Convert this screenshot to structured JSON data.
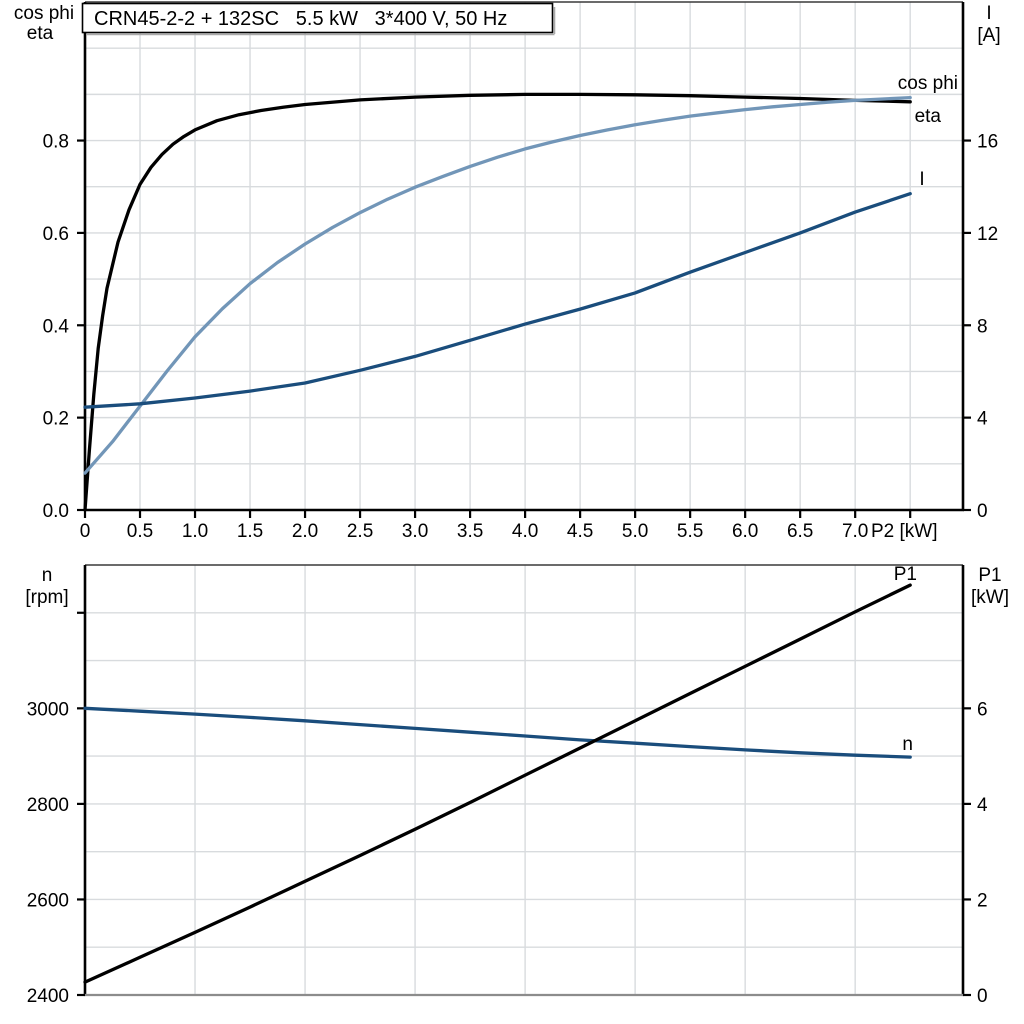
{
  "title_box": {
    "label": "CRN45-2-2 + 132SC   5.5 kW   3*400 V, 50 Hz"
  },
  "colors": {
    "eta": "#000000",
    "cos_phi": "#7296b8",
    "current": "#1a4d7c",
    "p1": "#000000",
    "n": "#1a4d7c",
    "grid": "#d8dbde",
    "axis": "#000000",
    "frame_top": "#3a3a3a",
    "frame_bottom": "#8c8c8c",
    "text": "#000000"
  },
  "chart_data": [
    {
      "type": "line",
      "title": "CRN45-2-2 + 132SC   5.5 kW   3*400 V, 50 Hz",
      "x_axis": {
        "label": "P2 [kW]",
        "range": [
          0,
          7.98
        ],
        "tick_step": 0.5,
        "grid_step": 0.5,
        "tick_labels": [
          "0",
          "0.5",
          "1.0",
          "1.5",
          "2.0",
          "2.5",
          "3.0",
          "3.5",
          "4.0",
          "4.5",
          "5.0",
          "5.5",
          "6.0",
          "6.5",
          "7.0"
        ],
        "extra_tick_values": [
          7.5
        ]
      },
      "left_axis": {
        "label_lines": [
          "cos phi",
          "eta"
        ],
        "range": [
          0,
          1.1
        ],
        "grid_step": 0.1,
        "tick_values": [
          0.0,
          0.2,
          0.4,
          0.6,
          0.8
        ],
        "tick_labels": [
          "0.0",
          "0.2",
          "0.4",
          "0.6",
          "0.8"
        ],
        "extra_tick_values": []
      },
      "right_axis": {
        "label_lines": [
          "I",
          "[A]"
        ],
        "range": [
          0,
          22
        ],
        "grid_step": 2,
        "tick_values": [
          0,
          4,
          8,
          12,
          16
        ],
        "tick_labels": [
          "0",
          "4",
          "8",
          "12",
          "16"
        ],
        "extra_tick_values": []
      },
      "series": [
        {
          "name": "eta",
          "label": "eta",
          "axis": "left",
          "color_key": "eta",
          "points": [
            [
              0,
              0
            ],
            [
              0.04,
              0.13
            ],
            [
              0.08,
              0.25
            ],
            [
              0.12,
              0.35
            ],
            [
              0.16,
              0.42
            ],
            [
              0.2,
              0.48
            ],
            [
              0.3,
              0.58
            ],
            [
              0.4,
              0.65
            ],
            [
              0.5,
              0.705
            ],
            [
              0.6,
              0.742
            ],
            [
              0.7,
              0.77
            ],
            [
              0.8,
              0.792
            ],
            [
              0.9,
              0.809
            ],
            [
              1.0,
              0.823
            ],
            [
              1.2,
              0.843
            ],
            [
              1.4,
              0.856
            ],
            [
              1.6,
              0.865
            ],
            [
              1.8,
              0.872
            ],
            [
              2.0,
              0.878
            ],
            [
              2.5,
              0.888
            ],
            [
              3.0,
              0.894
            ],
            [
              3.5,
              0.898
            ],
            [
              4.0,
              0.9
            ],
            [
              4.5,
              0.9
            ],
            [
              5.0,
              0.899
            ],
            [
              5.5,
              0.897
            ],
            [
              6.0,
              0.894
            ],
            [
              6.5,
              0.891
            ],
            [
              7.0,
              0.887
            ],
            [
              7.5,
              0.884
            ]
          ]
        },
        {
          "name": "cos phi",
          "label": "cos phi",
          "axis": "left",
          "color_key": "cos_phi",
          "points": [
            [
              0,
              0.08
            ],
            [
              0.25,
              0.148
            ],
            [
              0.5,
              0.225
            ],
            [
              0.75,
              0.302
            ],
            [
              1.0,
              0.375
            ],
            [
              1.25,
              0.436
            ],
            [
              1.5,
              0.49
            ],
            [
              1.75,
              0.536
            ],
            [
              2.0,
              0.576
            ],
            [
              2.25,
              0.612
            ],
            [
              2.5,
              0.644
            ],
            [
              2.75,
              0.673
            ],
            [
              3.0,
              0.699
            ],
            [
              3.25,
              0.722
            ],
            [
              3.5,
              0.744
            ],
            [
              3.75,
              0.764
            ],
            [
              4.0,
              0.782
            ],
            [
              4.25,
              0.797
            ],
            [
              4.5,
              0.811
            ],
            [
              4.75,
              0.823
            ],
            [
              5.0,
              0.834
            ],
            [
              5.25,
              0.844
            ],
            [
              5.5,
              0.853
            ],
            [
              5.75,
              0.86
            ],
            [
              6.0,
              0.867
            ],
            [
              6.25,
              0.873
            ],
            [
              6.5,
              0.878
            ],
            [
              6.75,
              0.883
            ],
            [
              7.0,
              0.887
            ],
            [
              7.25,
              0.89
            ],
            [
              7.5,
              0.893
            ]
          ]
        },
        {
          "name": "I",
          "label": "I",
          "axis": "right",
          "color_key": "current",
          "points": [
            [
              0,
              4.45
            ],
            [
              0.5,
              4.6
            ],
            [
              1.0,
              4.85
            ],
            [
              1.5,
              5.15
            ],
            [
              2.0,
              5.5
            ],
            [
              2.5,
              6.05
            ],
            [
              3.0,
              6.65
            ],
            [
              3.5,
              7.35
            ],
            [
              4.0,
              8.05
            ],
            [
              4.5,
              8.7
            ],
            [
              5.0,
              9.4
            ],
            [
              5.5,
              10.3
            ],
            [
              6.0,
              11.15
            ],
            [
              6.5,
              12.0
            ],
            [
              7.0,
              12.9
            ],
            [
              7.5,
              13.7
            ]
          ]
        }
      ]
    },
    {
      "type": "line",
      "title": "",
      "x_axis": {
        "label": "",
        "range": [
          0,
          7.98
        ],
        "tick_step": 1.0,
        "grid_step": 1.0,
        "tick_labels": [],
        "extra_tick_values": []
      },
      "left_axis": {
        "label_lines": [
          "n",
          "[rpm]"
        ],
        "range": [
          2400,
          3300
        ],
        "grid_step": 100,
        "tick_values": [
          2400,
          2600,
          2800,
          3000
        ],
        "tick_labels": [
          "2400",
          "2600",
          "2800",
          "3000"
        ],
        "extra_tick_values": [
          3200
        ]
      },
      "right_axis": {
        "label_lines": [
          "P1",
          "[kW]"
        ],
        "range": [
          0,
          9
        ],
        "grid_step": 1,
        "tick_values": [
          0,
          2,
          4,
          6
        ],
        "tick_labels": [
          "0",
          "2",
          "4",
          "6"
        ],
        "extra_tick_values": []
      },
      "series": [
        {
          "name": "n",
          "label": "n",
          "axis": "left",
          "color_key": "n",
          "points": [
            [
              0,
              3000
            ],
            [
              0.5,
              2994
            ],
            [
              1.0,
              2988
            ],
            [
              1.5,
              2981
            ],
            [
              2.0,
              2974
            ],
            [
              2.5,
              2966
            ],
            [
              3.0,
              2958
            ],
            [
              3.5,
              2950
            ],
            [
              4.0,
              2942
            ],
            [
              4.5,
              2934
            ],
            [
              5.0,
              2927
            ],
            [
              5.5,
              2920
            ],
            [
              6.0,
              2913
            ],
            [
              6.5,
              2907
            ],
            [
              7.0,
              2902
            ],
            [
              7.5,
              2898
            ]
          ]
        },
        {
          "name": "P1",
          "label": "P1",
          "axis": "right",
          "color_key": "p1",
          "points": [
            [
              0,
              0.27
            ],
            [
              0.5,
              0.79
            ],
            [
              1.0,
              1.31
            ],
            [
              1.5,
              1.84
            ],
            [
              2.0,
              2.38
            ],
            [
              2.5,
              2.92
            ],
            [
              3.0,
              3.47
            ],
            [
              3.5,
              4.03
            ],
            [
              4.0,
              4.6
            ],
            [
              4.5,
              5.17
            ],
            [
              5.0,
              5.74
            ],
            [
              5.5,
              6.31
            ],
            [
              6.0,
              6.88
            ],
            [
              6.5,
              7.45
            ],
            [
              7.0,
              8.02
            ],
            [
              7.5,
              8.58
            ]
          ]
        }
      ]
    }
  ]
}
